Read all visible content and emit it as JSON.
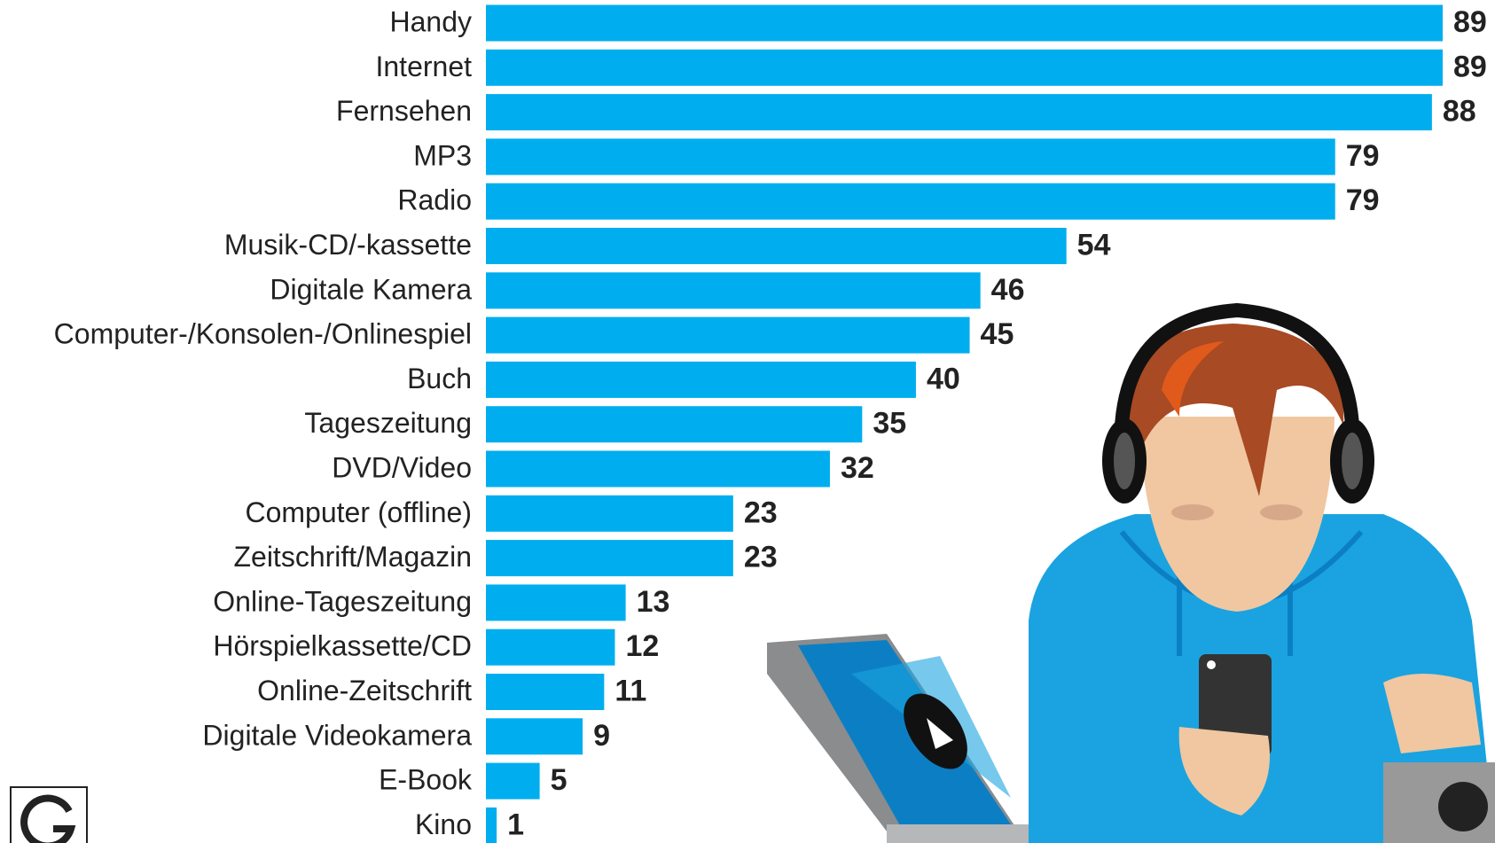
{
  "chart_data": {
    "type": "bar",
    "orientation": "horizontal",
    "categories": [
      "Handy",
      "Internet",
      "Fernsehen",
      "MP3",
      "Radio",
      "Musik-CD/-kassette",
      "Digitale Kamera",
      "Computer-/Konsolen-/Onlinespiel",
      "Buch",
      "Tageszeitung",
      "DVD/Video",
      "Computer (offline)",
      "Zeitschrift/Magazin",
      "Online-Tageszeitung",
      "Hörspielkassette/CD",
      "Online-Zeitschrift",
      "Digitale Videokamera",
      "E-Book",
      "Kino"
    ],
    "values": [
      89,
      89,
      88,
      79,
      79,
      54,
      46,
      45,
      40,
      35,
      32,
      23,
      23,
      13,
      12,
      11,
      9,
      5,
      1
    ],
    "color": "#00aeef"
  }
}
